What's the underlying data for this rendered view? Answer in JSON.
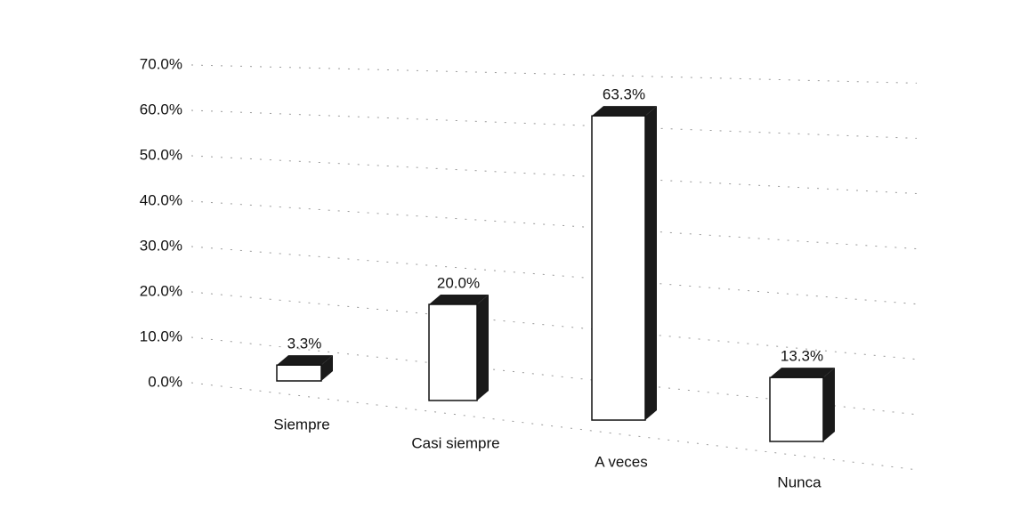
{
  "chart_data": {
    "type": "bar3d",
    "categories": [
      "Siempre",
      "Casi siempre",
      "A veces",
      "Nunca"
    ],
    "values": [
      3.3,
      20.0,
      63.3,
      13.3
    ],
    "value_labels": [
      "3.3%",
      "20.0%",
      "63.3%",
      "13.3%"
    ],
    "color": "#ffffff",
    "side_color": "#1a1a1a",
    "ylim": [
      0,
      70
    ],
    "yticks": [
      {
        "value": 0,
        "label": "0.0%"
      },
      {
        "value": 10,
        "label": "10.0%"
      },
      {
        "value": 20,
        "label": "20.0%"
      },
      {
        "value": 30,
        "label": "30.0%"
      },
      {
        "value": 40,
        "label": "40.0%"
      },
      {
        "value": 50,
        "label": "50.0%"
      },
      {
        "value": 60,
        "label": "60.0%"
      },
      {
        "value": 70,
        "label": "70.0%"
      }
    ],
    "grid": true
  }
}
